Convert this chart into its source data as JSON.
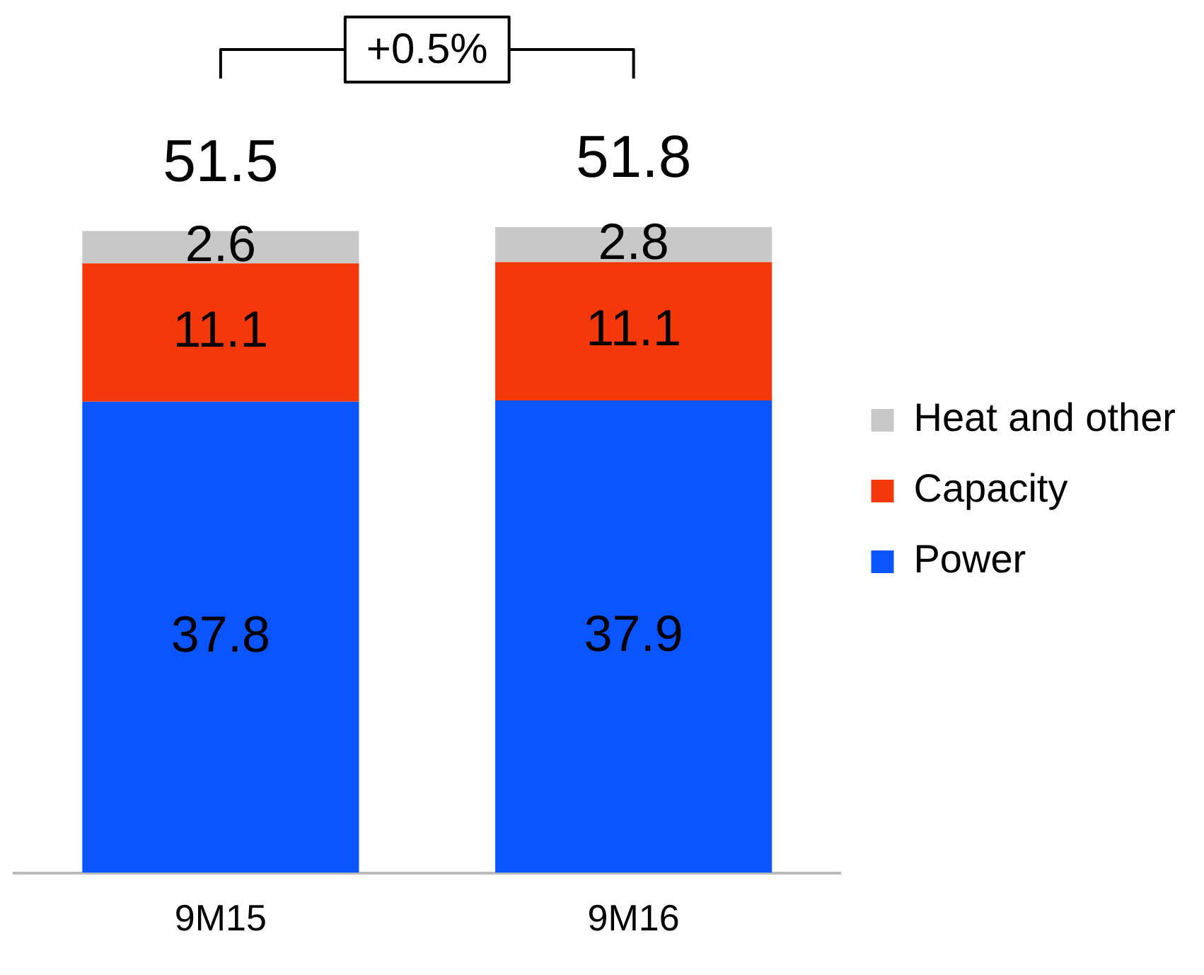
{
  "chart_data": {
    "type": "bar",
    "stacked": true,
    "categories": [
      "9M15",
      "9M16"
    ],
    "series": [
      {
        "name": "Power",
        "color": "#0a55ff",
        "values": [
          37.8,
          37.9
        ]
      },
      {
        "name": "Capacity",
        "color": "#f4380a",
        "values": [
          11.1,
          11.1
        ]
      },
      {
        "name": "Heat and other",
        "color": "#c8c8c8",
        "values": [
          2.6,
          2.8
        ]
      }
    ],
    "data_labels": true,
    "totals": [
      "51.5",
      "51.8"
    ],
    "annotations": [
      "+0.5%"
    ],
    "legend": "right",
    "grid": false,
    "tick_labels": "x"
  }
}
